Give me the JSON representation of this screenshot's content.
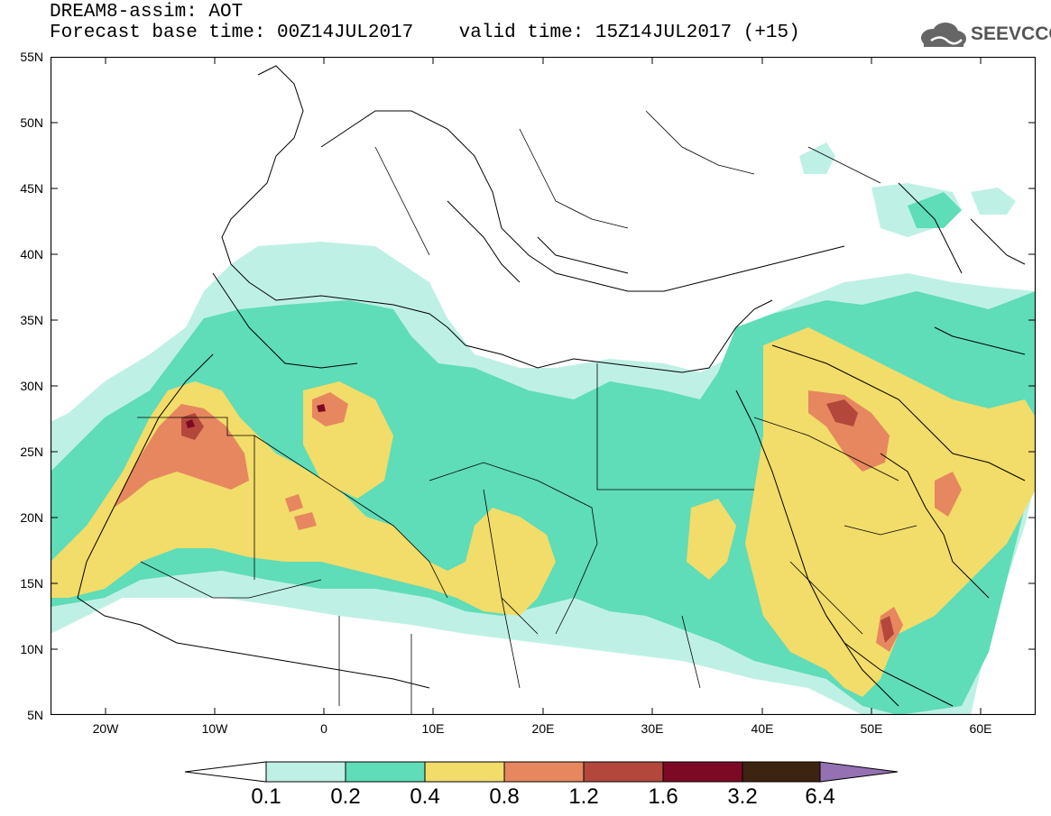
{
  "title": {
    "line1": "DREAM8-assim: AOT",
    "line2": "Forecast base time: 00Z14JUL2017    valid time: 15Z14JUL2017 (+15)"
  },
  "logo": {
    "text": "SEEVCCC"
  },
  "map": {
    "lat_labels": [
      "55N",
      "50N",
      "45N",
      "40N",
      "35N",
      "30N",
      "25N",
      "20N",
      "15N",
      "10N",
      "5N"
    ],
    "lon_labels": [
      "20W",
      "10W",
      "0",
      "10E",
      "20E",
      "30E",
      "40E",
      "50E",
      "60E"
    ],
    "lat_range": [
      5,
      55
    ],
    "lon_range": [
      -25,
      65
    ]
  },
  "colorbar": {
    "labels": [
      "0.1",
      "0.2",
      "0.4",
      "0.8",
      "1.2",
      "1.6",
      "3.2",
      "6.4"
    ],
    "colors": [
      "#bff0e6",
      "#5fdcb8",
      "#f2dc6a",
      "#e6875f",
      "#b3473c",
      "#7d0a24",
      "#3d2410",
      "#9570b3"
    ]
  },
  "colors": {
    "c1": "#bff0e6",
    "c2": "#5fdcb8",
    "c3": "#f2dc6a",
    "c4": "#e6875f",
    "c5": "#b3473c",
    "c6": "#7d0a24"
  }
}
